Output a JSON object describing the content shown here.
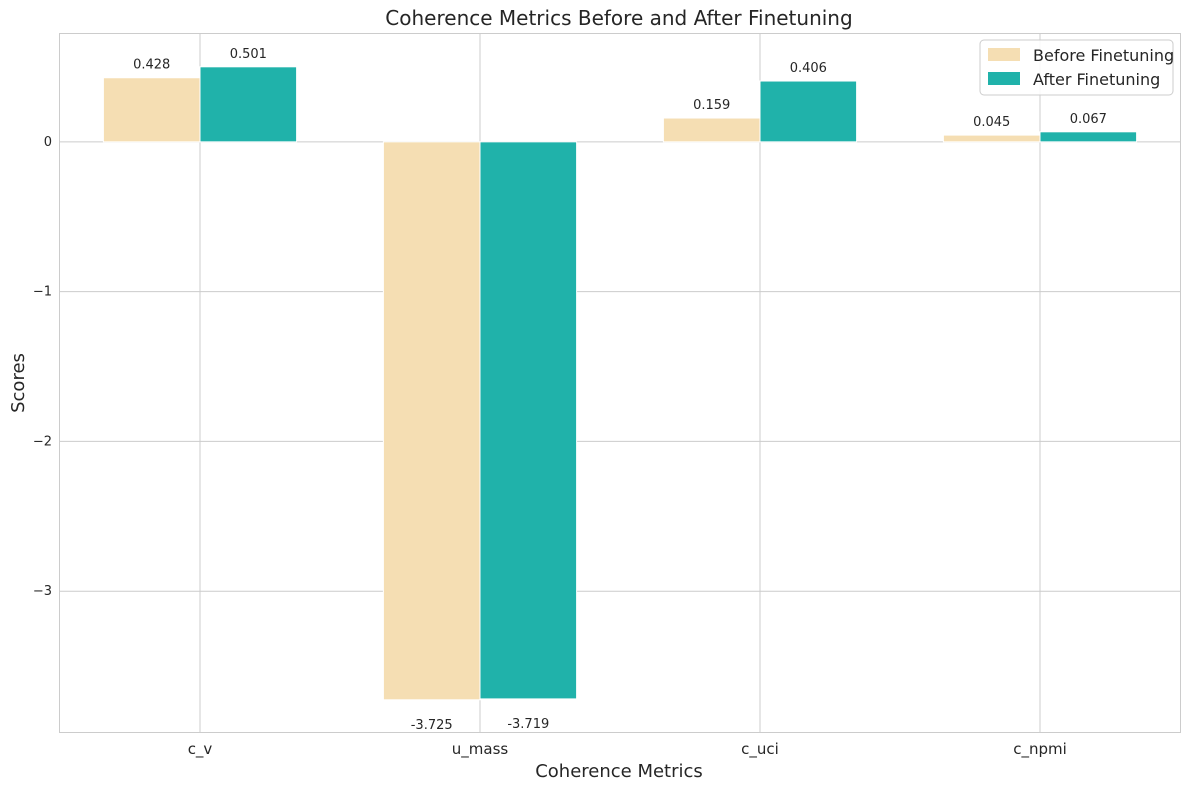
{
  "chart_data": {
    "type": "bar",
    "title": "Coherence Metrics Before and After Finetuning",
    "xlabel": "Coherence Metrics",
    "ylabel": "Scores",
    "categories": [
      "c_v",
      "u_mass",
      "c_uci",
      "c_npmi"
    ],
    "series": [
      {
        "name": "Before Finetuning",
        "values": [
          0.428,
          -3.725,
          0.159,
          0.045
        ],
        "labels": [
          "0.428",
          "-3.725",
          "0.159",
          "0.045"
        ],
        "color": "#f5deb3"
      },
      {
        "name": "After Finetuning",
        "values": [
          0.501,
          -3.719,
          0.406,
          0.067
        ],
        "labels": [
          "0.501",
          "-3.719",
          "0.406",
          "0.067"
        ],
        "color": "#20b2aa"
      }
    ],
    "yticks": [
      0,
      -1,
      -2,
      -3
    ],
    "ytick_labels": [
      "0",
      "−1",
      "−2",
      "−3"
    ],
    "ylim": [
      -3.94,
      0.72
    ],
    "grid": true,
    "legend_position": "top-right",
    "grid_color": "#cccccc"
  }
}
